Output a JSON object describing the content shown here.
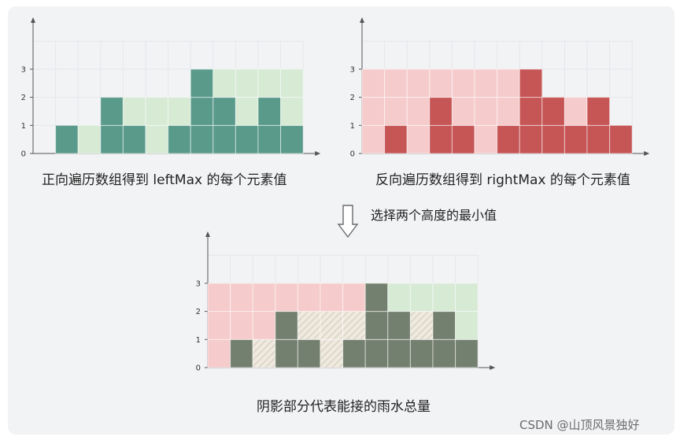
{
  "captions": {
    "left": "正向遍历数组得到 leftMax 的每个元素值",
    "right": "反向遍历数组得到 rightMax 的每个元素值",
    "middle": "选择两个高度的最小值",
    "bottom": "阴影部分代表能接的雨水总量"
  },
  "watermark": "CSDN @山顶风景独好",
  "colors": {
    "bar_left": "#5a9a8b",
    "fill_left": "#d6ead4",
    "bar_right": "#c65555",
    "fill_right": "#f6cbcb",
    "bar_bottom": "#74806f",
    "water_hatch": "#d9d2c1"
  },
  "chart_data": [
    {
      "type": "bar",
      "name": "leftMax",
      "heights": [
        0,
        1,
        0,
        2,
        1,
        0,
        1,
        3,
        2,
        1,
        2,
        1
      ],
      "max": [
        0,
        1,
        1,
        2,
        2,
        2,
        2,
        3,
        3,
        3,
        3,
        3
      ],
      "y_ticks": [
        "0",
        "1",
        "2",
        "3"
      ]
    },
    {
      "type": "bar",
      "name": "rightMax",
      "heights": [
        0,
        1,
        0,
        2,
        1,
        0,
        1,
        3,
        2,
        1,
        2,
        1
      ],
      "max": [
        3,
        3,
        3,
        3,
        3,
        3,
        3,
        3,
        2,
        2,
        2,
        1
      ],
      "y_ticks": [
        "0",
        "1",
        "2",
        "3"
      ]
    },
    {
      "type": "bar",
      "name": "trapped water",
      "heights": [
        0,
        1,
        0,
        2,
        1,
        0,
        1,
        3,
        2,
        1,
        2,
        1
      ],
      "leftMax": [
        0,
        1,
        1,
        2,
        2,
        2,
        2,
        3,
        3,
        3,
        3,
        3
      ],
      "rightMax": [
        3,
        3,
        3,
        3,
        3,
        3,
        3,
        3,
        2,
        2,
        2,
        1
      ],
      "y_ticks": [
        "0",
        "1",
        "2",
        "3"
      ]
    }
  ]
}
